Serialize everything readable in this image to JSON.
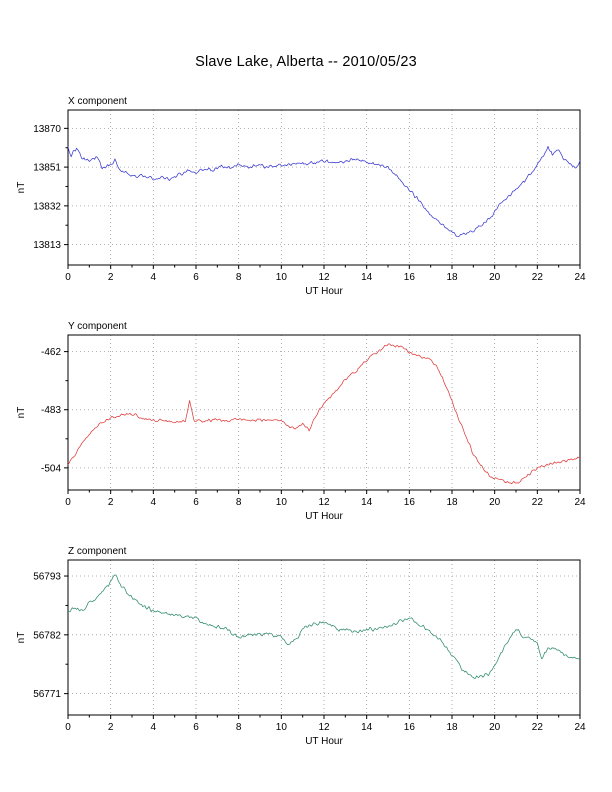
{
  "page_title": "Slave Lake, Alberta -- 2010/05/23",
  "chart_data": [
    {
      "type": "line",
      "title": "X component",
      "xlabel": "UT Hour",
      "ylabel": "nT",
      "color": "#3a3ad1",
      "xlim": [
        0,
        24
      ],
      "ylim": [
        13803,
        13879
      ],
      "xticks": [
        0,
        2,
        4,
        6,
        8,
        10,
        12,
        14,
        16,
        18,
        20,
        22,
        24
      ],
      "yticks": [
        13813,
        13832,
        13851,
        13870
      ],
      "noise_amplitude": 1.2,
      "seed": 11,
      "points": [
        [
          0,
          13861
        ],
        [
          0.15,
          13857
        ],
        [
          0.4,
          13860
        ],
        [
          0.7,
          13855
        ],
        [
          1,
          13854
        ],
        [
          1.3,
          13856
        ],
        [
          1.6,
          13851
        ],
        [
          2,
          13852
        ],
        [
          2.2,
          13855
        ],
        [
          2.5,
          13849
        ],
        [
          2.8,
          13848
        ],
        [
          3.2,
          13846
        ],
        [
          3.6,
          13847
        ],
        [
          4,
          13845
        ],
        [
          4.4,
          13846
        ],
        [
          4.8,
          13845
        ],
        [
          5.2,
          13847
        ],
        [
          5.6,
          13849
        ],
        [
          6,
          13848
        ],
        [
          6.4,
          13850
        ],
        [
          6.8,
          13849
        ],
        [
          7.2,
          13851
        ],
        [
          7.6,
          13851
        ],
        [
          8,
          13852
        ],
        [
          8.5,
          13851
        ],
        [
          9,
          13852
        ],
        [
          9.5,
          13851
        ],
        [
          10,
          13852
        ],
        [
          10.5,
          13852
        ],
        [
          11,
          13853
        ],
        [
          11.5,
          13853
        ],
        [
          12,
          13854
        ],
        [
          12.5,
          13853
        ],
        [
          13,
          13854
        ],
        [
          13.4,
          13855
        ],
        [
          13.8,
          13854
        ],
        [
          14.2,
          13853
        ],
        [
          14.6,
          13852
        ],
        [
          15,
          13851
        ],
        [
          15.3,
          13848
        ],
        [
          15.6,
          13845
        ],
        [
          16,
          13840
        ],
        [
          16.4,
          13835
        ],
        [
          16.8,
          13830
        ],
        [
          17.2,
          13826
        ],
        [
          17.6,
          13822
        ],
        [
          18,
          13819
        ],
        [
          18.4,
          13817
        ],
        [
          18.8,
          13819
        ],
        [
          19.2,
          13821
        ],
        [
          19.6,
          13824
        ],
        [
          20,
          13829
        ],
        [
          20.4,
          13834
        ],
        [
          20.8,
          13838
        ],
        [
          21.2,
          13842
        ],
        [
          21.6,
          13847
        ],
        [
          22,
          13852
        ],
        [
          22.3,
          13857
        ],
        [
          22.5,
          13861
        ],
        [
          22.7,
          13857
        ],
        [
          23,
          13859
        ],
        [
          23.2,
          13855
        ],
        [
          23.5,
          13853
        ],
        [
          23.8,
          13851
        ],
        [
          24,
          13854
        ]
      ]
    },
    {
      "type": "line",
      "title": "Y component",
      "xlabel": "UT Hour",
      "ylabel": "nT",
      "color": "#e03a3a",
      "xlim": [
        0,
        24
      ],
      "ylim": [
        -512,
        -456
      ],
      "xticks": [
        0,
        2,
        4,
        6,
        8,
        10,
        12,
        14,
        16,
        18,
        20,
        22,
        24
      ],
      "yticks": [
        -504,
        -483,
        -462
      ],
      "noise_amplitude": 0.7,
      "seed": 22,
      "points": [
        [
          0,
          -503
        ],
        [
          0.5,
          -497
        ],
        [
          1,
          -492
        ],
        [
          1.5,
          -488
        ],
        [
          2,
          -486
        ],
        [
          2.5,
          -485
        ],
        [
          3,
          -484.5
        ],
        [
          3.5,
          -486
        ],
        [
          4,
          -487
        ],
        [
          4.5,
          -487
        ],
        [
          5,
          -487.5
        ],
        [
          5.5,
          -487
        ],
        [
          5.7,
          -479.5
        ],
        [
          5.9,
          -487
        ],
        [
          6.5,
          -487
        ],
        [
          7,
          -486.5
        ],
        [
          7.5,
          -487
        ],
        [
          8,
          -486
        ],
        [
          8.5,
          -487
        ],
        [
          9,
          -486.5
        ],
        [
          9.5,
          -487
        ],
        [
          10,
          -487
        ],
        [
          10.3,
          -489
        ],
        [
          10.7,
          -490
        ],
        [
          11,
          -488
        ],
        [
          11.3,
          -490
        ],
        [
          11.7,
          -484
        ],
        [
          12,
          -481
        ],
        [
          12.2,
          -479
        ],
        [
          12.5,
          -477
        ],
        [
          13,
          -472
        ],
        [
          13.5,
          -469
        ],
        [
          14,
          -465
        ],
        [
          14.5,
          -462
        ],
        [
          15,
          -459.5
        ],
        [
          15.5,
          -460
        ],
        [
          16,
          -462
        ],
        [
          16.5,
          -464
        ],
        [
          17,
          -465
        ],
        [
          17.3,
          -468
        ],
        [
          17.7,
          -474
        ],
        [
          18,
          -480
        ],
        [
          18.5,
          -490
        ],
        [
          19,
          -499
        ],
        [
          19.5,
          -505
        ],
        [
          20,
          -508
        ],
        [
          20.5,
          -509
        ],
        [
          21,
          -509.5
        ],
        [
          21.5,
          -507
        ],
        [
          22,
          -504
        ],
        [
          22.5,
          -503
        ],
        [
          23,
          -502
        ],
        [
          23.5,
          -501
        ],
        [
          24,
          -500
        ]
      ]
    },
    {
      "type": "line",
      "title": "Z component",
      "xlabel": "UT Hour",
      "ylabel": "nT",
      "color": "#2e8b6a",
      "xlim": [
        0,
        24
      ],
      "ylim": [
        56767,
        56796
      ],
      "xticks": [
        0,
        2,
        4,
        6,
        8,
        10,
        12,
        14,
        16,
        18,
        20,
        22,
        24
      ],
      "yticks": [
        56771,
        56782,
        56793
      ],
      "noise_amplitude": 0.45,
      "seed": 33,
      "points": [
        [
          0,
          56786
        ],
        [
          0.3,
          56787
        ],
        [
          0.7,
          56786.5
        ],
        [
          1,
          56788
        ],
        [
          1.5,
          56789.5
        ],
        [
          2,
          56792
        ],
        [
          2.2,
          56793.5
        ],
        [
          2.5,
          56791
        ],
        [
          3,
          56789
        ],
        [
          3.5,
          56787.5
        ],
        [
          4,
          56786.5
        ],
        [
          4.5,
          56786
        ],
        [
          5,
          56785.5
        ],
        [
          5.5,
          56785.5
        ],
        [
          6,
          56785
        ],
        [
          6.5,
          56784
        ],
        [
          7,
          56783.5
        ],
        [
          7.5,
          56783
        ],
        [
          8,
          56781.5
        ],
        [
          8.5,
          56782
        ],
        [
          9,
          56782
        ],
        [
          9.5,
          56782
        ],
        [
          10,
          56781.5
        ],
        [
          10.3,
          56780.5
        ],
        [
          10.7,
          56781
        ],
        [
          11,
          56783
        ],
        [
          11.5,
          56784
        ],
        [
          12,
          56784.5
        ],
        [
          12.3,
          56784
        ],
        [
          12.7,
          56783
        ],
        [
          13,
          56783
        ],
        [
          13.5,
          56782.5
        ],
        [
          14,
          56783
        ],
        [
          14.5,
          56783
        ],
        [
          15,
          56783.5
        ],
        [
          15.5,
          56784.5
        ],
        [
          16,
          56785
        ],
        [
          16.3,
          56784.5
        ],
        [
          17,
          56782.5
        ],
        [
          17.5,
          56781
        ],
        [
          18,
          56778
        ],
        [
          18.5,
          56775.5
        ],
        [
          19,
          56774
        ],
        [
          19.3,
          56774
        ],
        [
          19.7,
          56774.5
        ],
        [
          20,
          56776
        ],
        [
          20.5,
          56780
        ],
        [
          21,
          56783
        ],
        [
          21.3,
          56782
        ],
        [
          21.7,
          56781
        ],
        [
          22,
          56780.5
        ],
        [
          22.2,
          56777.5
        ],
        [
          22.5,
          56779.5
        ],
        [
          23,
          56779
        ],
        [
          23.5,
          56778
        ],
        [
          24,
          56777.5
        ]
      ]
    }
  ]
}
